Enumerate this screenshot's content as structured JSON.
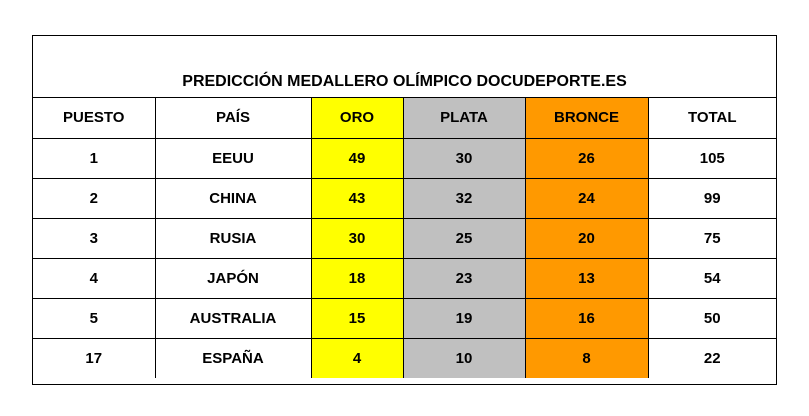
{
  "title": "PREDICCIÓN MEDALLERO OLÍMPICO DOCUDEPORTE.ES",
  "headers": {
    "puesto": "PUESTO",
    "pais": "PAÍS",
    "oro": "ORO",
    "plata": "PLATA",
    "bronce": "BRONCE",
    "total": "TOTAL"
  },
  "colors": {
    "oro": "#ffff00",
    "plata": "#c0c0c0",
    "bronce": "#ff9900"
  },
  "rows": [
    {
      "puesto": "1",
      "pais": "EEUU",
      "oro": "49",
      "plata": "30",
      "bronce": "26",
      "total": "105"
    },
    {
      "puesto": "2",
      "pais": "CHINA",
      "oro": "43",
      "plata": "32",
      "bronce": "24",
      "total": "99"
    },
    {
      "puesto": "3",
      "pais": "RUSIA",
      "oro": "30",
      "plata": "25",
      "bronce": "20",
      "total": "75"
    },
    {
      "puesto": "4",
      "pais": "JAPÓN",
      "oro": "18",
      "plata": "23",
      "bronce": "13",
      "total": "54"
    },
    {
      "puesto": "5",
      "pais": "AUSTRALIA",
      "oro": "15",
      "plata": "19",
      "bronce": "16",
      "total": "50"
    },
    {
      "puesto": "17",
      "pais": "ESPAÑA",
      "oro": "4",
      "plata": "10",
      "bronce": "8",
      "total": "22"
    }
  ]
}
